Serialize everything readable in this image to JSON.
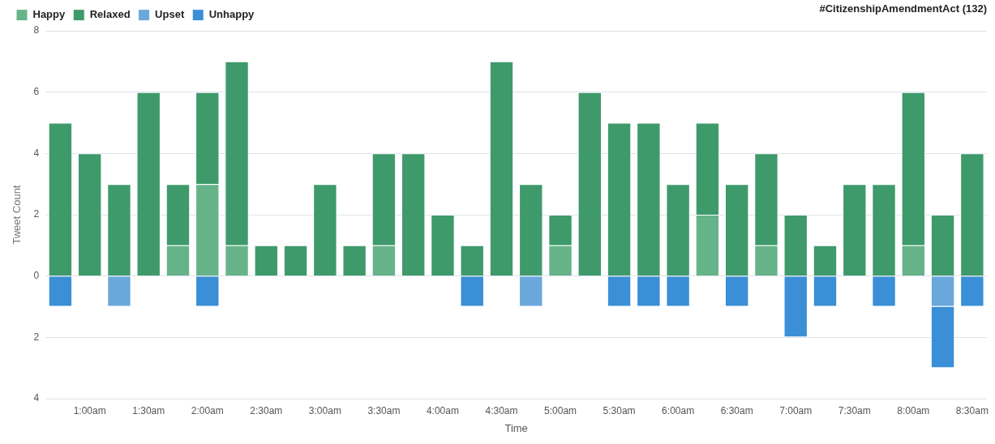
{
  "chart_data": {
    "type": "bar",
    "title": "#CitizenshipAmendmentAct (132)",
    "xlabel": "Time",
    "ylabel": "Tweet Count",
    "categories": [
      null,
      "1:00am",
      null,
      "1:30am",
      null,
      "2:00am",
      null,
      "2:30am",
      null,
      "3:00am",
      null,
      "3:30am",
      null,
      "4:00am",
      null,
      "4:30am",
      null,
      "5:00am",
      null,
      "5:30am",
      null,
      "6:00am",
      null,
      "6:30am",
      null,
      "7:00am",
      null,
      "7:30am",
      null,
      "8:00am",
      null,
      "8:30am"
    ],
    "series": [
      {
        "name": "Happy",
        "color": "#66b38a",
        "values": [
          null,
          null,
          null,
          null,
          1,
          3,
          1,
          null,
          null,
          null,
          null,
          1,
          null,
          null,
          null,
          null,
          null,
          1,
          null,
          null,
          null,
          null,
          2,
          null,
          1,
          null,
          null,
          null,
          null,
          1,
          null,
          null
        ]
      },
      {
        "name": "Relaxed",
        "color": "#3f9a6b",
        "values": [
          5,
          4,
          3,
          6,
          2,
          3,
          6,
          1,
          1,
          3,
          1,
          3,
          4,
          2,
          1,
          7,
          3,
          1,
          6,
          5,
          5,
          3,
          3,
          3,
          3,
          2,
          1,
          3,
          3,
          5,
          2,
          4
        ]
      },
      {
        "name": "Upset",
        "color": "#6aa8dc",
        "values": [
          null,
          null,
          -1,
          null,
          null,
          null,
          null,
          null,
          null,
          null,
          null,
          null,
          null,
          null,
          null,
          null,
          -1,
          null,
          null,
          null,
          null,
          null,
          null,
          null,
          null,
          null,
          null,
          null,
          null,
          null,
          -1,
          null
        ]
      },
      {
        "name": "Unhappy",
        "color": "#3a8fd6",
        "values": [
          -1,
          null,
          null,
          null,
          null,
          -1,
          null,
          null,
          null,
          null,
          null,
          null,
          null,
          null,
          -1,
          null,
          null,
          null,
          null,
          -1,
          -1,
          -1,
          null,
          -1,
          null,
          -2,
          -1,
          null,
          -1,
          null,
          -2,
          -1
        ]
      }
    ],
    "stacked": true,
    "ylim": [
      -4,
      8
    ],
    "yticks": [
      {
        "value": -4,
        "label": "4"
      },
      {
        "value": -2,
        "label": "2"
      },
      0,
      2,
      4,
      6,
      8
    ],
    "grid": "y",
    "legend": "top left"
  }
}
